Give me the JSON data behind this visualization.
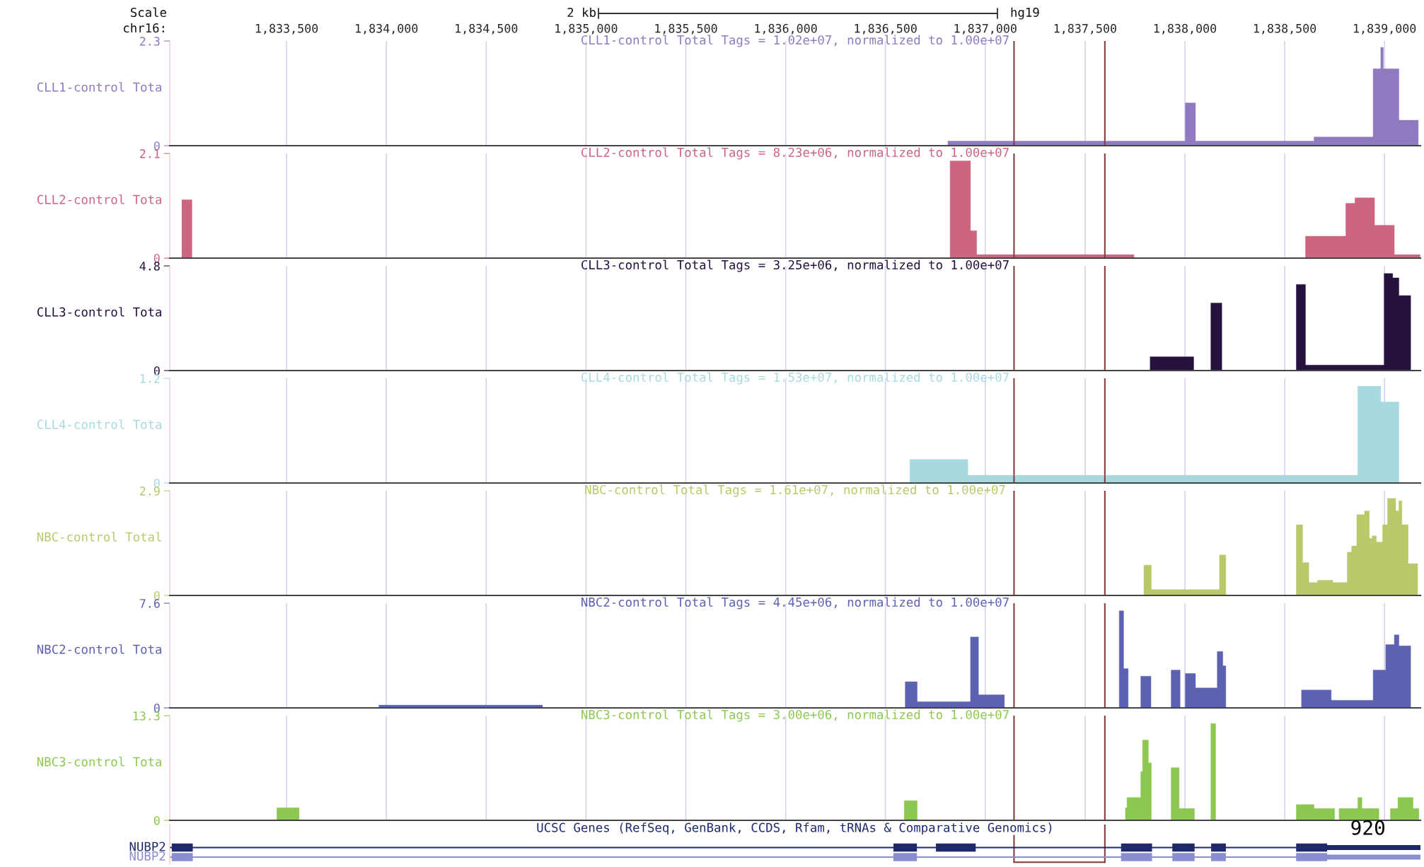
{
  "chart_data": [
    {
      "type": "area",
      "title": "CLL1-control Total Tags = 1.02e+07, normalized to 1.00e+07",
      "ylabel": "CLL1-control Tota",
      "annotations": [
        "Scale",
        "chr16:",
        "2 kb",
        "hg19"
      ],
      "xlim": [
        1832915,
        1839180
      ],
      "xticks": [
        {
          "value": 1833500,
          "label": "1,833,500"
        },
        {
          "value": 1834000,
          "label": "1,834,000"
        },
        {
          "value": 1834500,
          "label": "1,834,500"
        },
        {
          "value": 1835000,
          "label": "1,835,000"
        },
        {
          "value": 1835500,
          "label": "1,835,500"
        },
        {
          "value": 1836000,
          "label": "1,836,000"
        },
        {
          "value": 1836500,
          "label": "1,836,500"
        },
        {
          "value": 1837000,
          "label": "1,837,000"
        },
        {
          "value": 1837500,
          "label": "1,837,500"
        },
        {
          "value": 1838000,
          "label": "1,838,000"
        },
        {
          "value": 1838500,
          "label": "1,838,500"
        },
        {
          "value": 1839000,
          "label": "1,839,000"
        }
      ],
      "ylim": [
        0,
        2.3
      ],
      "yticks": [
        0,
        2.3
      ],
      "grid": "x",
      "ref_lines": [
        {
          "axis": "x",
          "value": 1837144,
          "color": "#8b3a3a"
        },
        {
          "axis": "x",
          "value": 1837599,
          "color": "#8b3a3a"
        }
      ],
      "series": [
        {
          "color": "#8f7ac0",
          "x": [
            1836812,
            1838002,
            1838053,
            1838647,
            1838943,
            1838981,
            1838994,
            1839072,
            1839169
          ],
          "values": [
            0.1,
            0.94,
            0.1,
            0.19,
            1.69,
            2.16,
            1.69,
            0.56,
            0
          ]
        }
      ]
    },
    {
      "type": "area",
      "title": "CLL2-control Total Tags = 8.23e+06, normalized to 1.00e+07",
      "ylabel": "CLL2-control Tota",
      "xlim": [
        1832915,
        1839180
      ],
      "xticks": [
        1833500,
        1834000,
        1834500,
        1835000,
        1835500,
        1836000,
        1836500,
        1837000,
        1837500,
        1838000,
        1838500,
        1839000
      ],
      "tick_labels": "y",
      "ylim": [
        0,
        2.1
      ],
      "yticks": [
        0,
        2.1
      ],
      "grid": "x",
      "ref_lines": [
        {
          "axis": "x",
          "value": 1837144,
          "color": "#8b3a3a"
        },
        {
          "axis": "x",
          "value": 1837599,
          "color": "#8b3a3a"
        }
      ],
      "series": [
        {
          "color": "#cc6680",
          "x": [
            1832975,
            1833026,
            1836824,
            1836926,
            1836957,
            1837745,
            1838604,
            1838806,
            1838852,
            1838950,
            1839049,
            1839178
          ],
          "values": [
            1.17,
            0,
            1.95,
            0.55,
            0.07,
            0,
            0.44,
            1.1,
            1.21,
            0.66,
            0.07,
            0
          ]
        }
      ]
    },
    {
      "type": "area",
      "title": "CLL3-control Total Tags = 3.25e+06, normalized to 1.00e+07",
      "ylabel": "CLL3-control Tota",
      "xlim": [
        1832915,
        1839180
      ],
      "xticks": [
        1833500,
        1834000,
        1834500,
        1835000,
        1835500,
        1836000,
        1836500,
        1837000,
        1837500,
        1838000,
        1838500,
        1839000
      ],
      "tick_labels": "y",
      "ylim": [
        0,
        4.8
      ],
      "yticks": [
        0,
        4.8
      ],
      "grid": "x",
      "ref_lines": [
        {
          "axis": "x",
          "value": 1837144,
          "color": "#8b3a3a"
        },
        {
          "axis": "x",
          "value": 1837599,
          "color": "#8b3a3a"
        }
      ],
      "series": [
        {
          "color": "#26113f",
          "x": [
            1837825,
            1838044,
            1838130,
            1838185,
            1838558,
            1838604,
            1838998,
            1839041,
            1839072,
            1839131
          ],
          "values": [
            0.63,
            0,
            3.1,
            0,
            3.95,
            0.25,
            4.45,
            4.25,
            3.44,
            0
          ]
        }
      ]
    },
    {
      "type": "area",
      "title": "CLL4-control Total Tags = 1.53e+07, normalized to 1.00e+07",
      "ylabel": "CLL4-control Tota",
      "xlim": [
        1832915,
        1839180
      ],
      "xticks": [
        1833500,
        1834000,
        1834500,
        1835000,
        1835500,
        1836000,
        1836500,
        1837000,
        1837500,
        1838000,
        1838500,
        1839000
      ],
      "tick_labels": "y",
      "ylim": [
        0,
        1.2
      ],
      "yticks": [
        0,
        1.2
      ],
      "grid": "x",
      "ref_lines": [
        {
          "axis": "x",
          "value": 1837144,
          "color": "#8b3a3a"
        },
        {
          "axis": "x",
          "value": 1837599,
          "color": "#8b3a3a"
        }
      ],
      "series": [
        {
          "color": "#a8d9e0",
          "x": [
            1836622,
            1836913,
            1838866,
            1838981,
            1839072
          ],
          "values": [
            0.27,
            0.09,
            1.11,
            0.93,
            0
          ]
        }
      ]
    },
    {
      "type": "area",
      "title": "NBC-control Total Tags = 1.61e+07, normalized to 1.00e+07",
      "ylabel": "NBC-control Total",
      "xlim": [
        1832915,
        1839180
      ],
      "xticks": [
        1833500,
        1834000,
        1834500,
        1835000,
        1835500,
        1836000,
        1836500,
        1837000,
        1837500,
        1838000,
        1838500,
        1839000
      ],
      "tick_labels": "y",
      "ylim": [
        0,
        2.9
      ],
      "yticks": [
        0,
        2.9
      ],
      "grid": "x",
      "ref_lines": [
        {
          "axis": "x",
          "value": 1837144,
          "color": "#8b3a3a"
        },
        {
          "axis": "x",
          "value": 1837599,
          "color": "#8b3a3a"
        }
      ],
      "series": [
        {
          "color": "#b8c96a",
          "x": [
            1837794,
            1837832,
            1838173,
            1838205,
            1838558,
            1838590,
            1838621,
            1838664,
            1838741,
            1838813,
            1838835,
            1838861,
            1838900,
            1838924,
            1838938,
            1838959,
            1838990,
            1839015,
            1839056,
            1839072,
            1839087,
            1839118,
            1839166
          ],
          "values": [
            0.84,
            0.16,
            1.12,
            0,
            1.96,
            0.91,
            0.36,
            0.42,
            0.36,
            1.2,
            1.37,
            2.24,
            2.34,
            1.58,
            1.65,
            1.48,
            1.96,
            2.69,
            2.34,
            2.62,
            1.96,
            0.88,
            0
          ]
        }
      ]
    },
    {
      "type": "area",
      "title": "NBC2-control Total Tags = 4.45e+06, normalized to 1.00e+07",
      "ylabel": "NBC2-control Tota",
      "xlim": [
        1832915,
        1839180
      ],
      "xticks": [
        1833500,
        1834000,
        1834500,
        1835000,
        1835500,
        1836000,
        1836500,
        1837000,
        1837500,
        1838000,
        1838500,
        1839000
      ],
      "tick_labels": "y",
      "ylim": [
        0,
        7.6
      ],
      "yticks": [
        0,
        7.6
      ],
      "grid": "x",
      "ref_lines": [
        {
          "axis": "x",
          "value": 1837144,
          "color": "#8b3a3a"
        },
        {
          "axis": "x",
          "value": 1837599,
          "color": "#8b3a3a"
        }
      ],
      "series": [
        {
          "color": "#5d62b0",
          "x": [
            1833962,
            1834782,
            1836599,
            1836659,
            1836926,
            1836966,
            1837096,
            1837671,
            1837693,
            1837716,
            1837779,
            1837830,
            1837931,
            1837976,
            1838002,
            1838053,
            1838162,
            1838190,
            1838205,
            1838584,
            1838733,
            1838943,
            1839006,
            1839049,
            1839072,
            1839131
          ],
          "values": [
            0.2,
            0,
            1.9,
            0.45,
            5.15,
            0.95,
            0,
            7.05,
            2.85,
            0,
            2.3,
            0,
            2.75,
            0,
            2.5,
            1.45,
            4.1,
            3.05,
            0,
            1.3,
            0.55,
            2.75,
            4.6,
            5.3,
            4.5,
            0
          ]
        }
      ]
    },
    {
      "type": "area",
      "title": "NBC3-control Total Tags = 3.00e+06, normalized to 1.00e+07",
      "ylabel": "NBC3-control Tota",
      "xlim": [
        1832915,
        1839180
      ],
      "xticks": [
        1833500,
        1834000,
        1834500,
        1835000,
        1835500,
        1836000,
        1836500,
        1837000,
        1837500,
        1838000,
        1838500,
        1839000
      ],
      "tick_labels": "y",
      "ylim": [
        0,
        13.3
      ],
      "yticks": [
        0,
        13.3
      ],
      "grid": "x",
      "ref_lines": [
        {
          "axis": "x",
          "value": 1837144,
          "color": "#8b3a3a"
        },
        {
          "axis": "x",
          "value": 1837599,
          "color": "#8b3a3a"
        }
      ],
      "series": [
        {
          "color": "#8cc850",
          "x": [
            1833451,
            1833563,
            1836594,
            1836659,
            1837702,
            1837710,
            1837779,
            1837788,
            1837817,
            1837832,
            1837931,
            1837971,
            1838048,
            1838130,
            1838154,
            1838558,
            1838647,
            1838750,
            1838772,
            1838866,
            1838887,
            1838972,
            1839029,
            1839067,
            1839143,
            1839172
          ],
          "values": [
            1.6,
            0,
            2.5,
            0,
            1.6,
            2.9,
            6.2,
            10.2,
            7.3,
            0,
            6.7,
            1.5,
            0,
            12.3,
            0,
            2.0,
            1.5,
            0,
            1.5,
            2.9,
            1.5,
            0,
            1.5,
            2.9,
            1.5,
            0
          ]
        }
      ]
    },
    {
      "type": "other",
      "title": "UCSC Genes (RefSeq, GenBank, CCDS, Rfam, tRNAs & Comparative Genomics)",
      "annotations": [
        "NUBP2",
        "NUBP2",
        "920"
      ]
    }
  ]
}
